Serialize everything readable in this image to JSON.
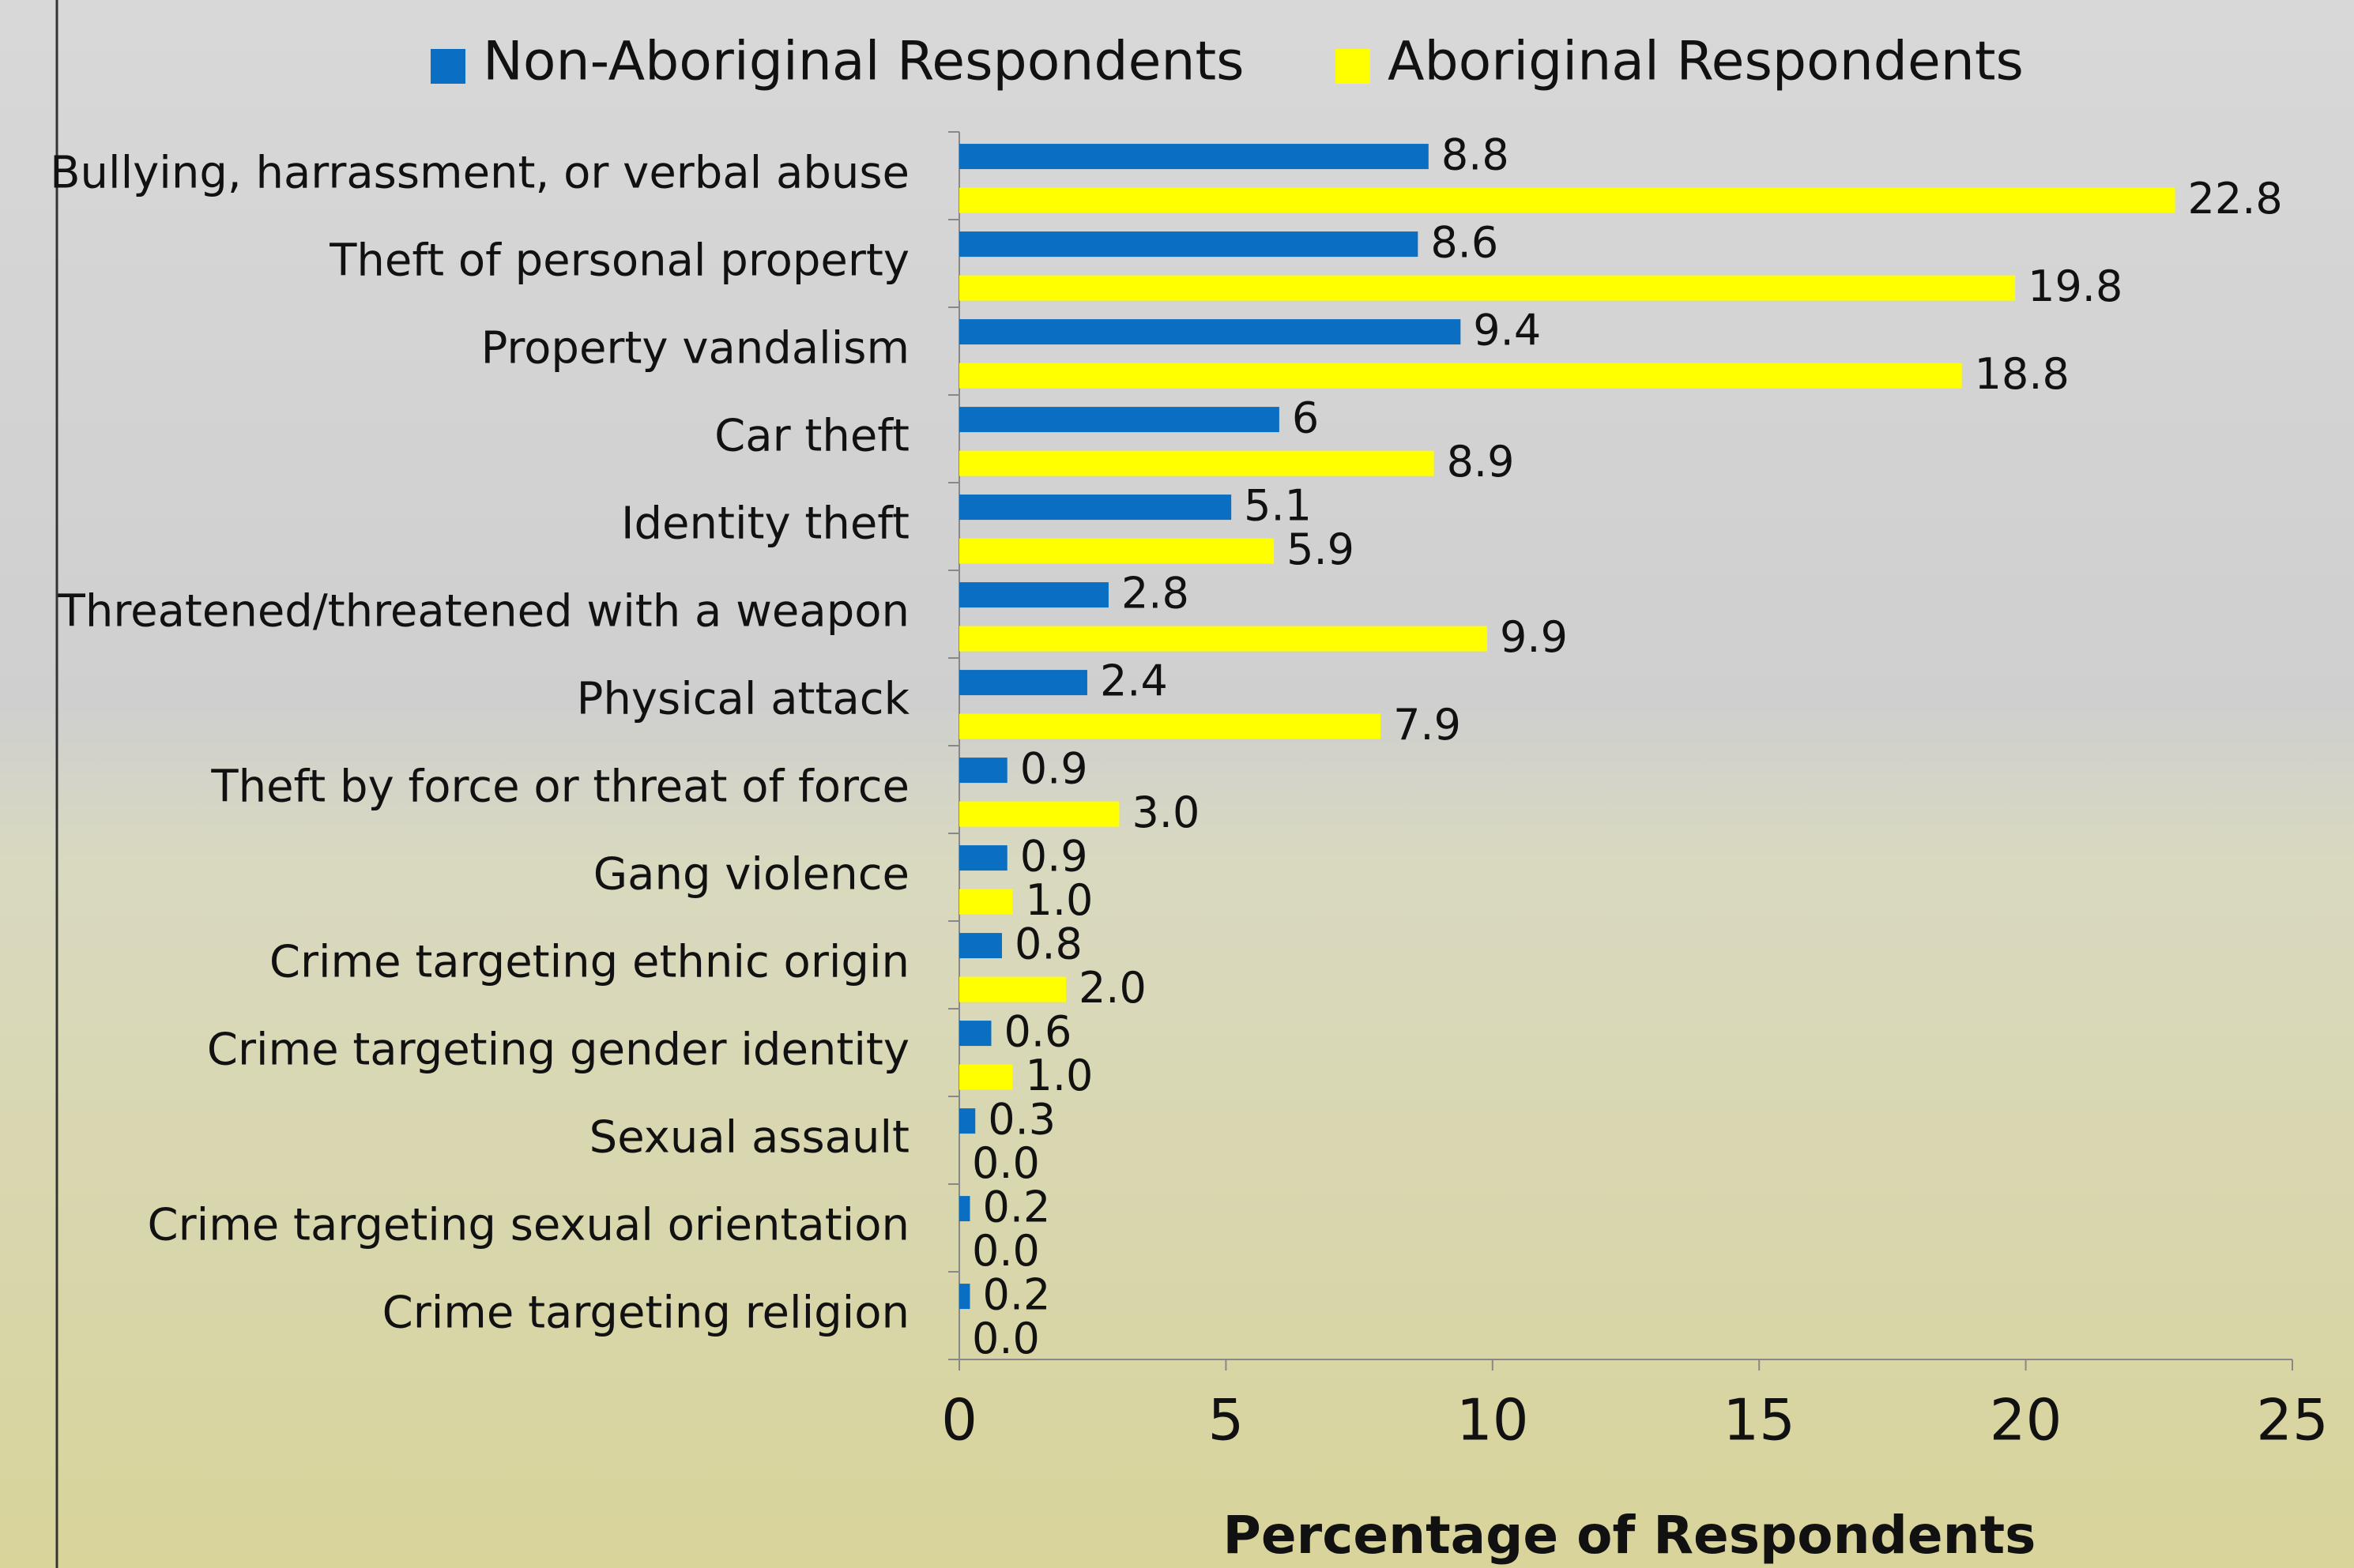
{
  "chart_data": {
    "type": "bar",
    "orientation": "horizontal",
    "xlabel": "Percentage of Respondents",
    "categories": [
      "Bullying, harrassment, or verbal abuse",
      "Theft of personal property",
      "Property vandalism",
      "Car theft",
      "Identity theft",
      "Threatened/threatened with a weapon",
      "Physical attack",
      "Theft by force or threat of force",
      "Gang violence",
      "Crime targeting ethnic origin",
      "Crime targeting gender identity",
      "Sexual assault",
      "Crime targeting sexual orientation",
      "Crime targeting religion"
    ],
    "series": [
      {
        "name": "Non-Aboriginal Respondents",
        "color": "#0a6fc2",
        "values": [
          8.8,
          8.6,
          9.4,
          6,
          5.1,
          2.8,
          2.4,
          0.9,
          0.9,
          0.8,
          0.6,
          0.3,
          0.2,
          0.2
        ]
      },
      {
        "name": "Aboriginal Respondents",
        "color": "#ffff00",
        "values": [
          22.8,
          19.8,
          18.8,
          8.9,
          5.9,
          9.9,
          7.9,
          3.0,
          1.0,
          2.0,
          1.0,
          0.0,
          0.0,
          0.0
        ],
        "value_labels": [
          "22.8",
          "19.8",
          "18.8",
          "8.9",
          "5.9",
          "9.9",
          "7.9",
          "3.0",
          "1.0",
          "2.0",
          "1.0",
          "0.0",
          "0.0",
          "0.0"
        ]
      }
    ],
    "xlim": [
      0,
      25
    ],
    "xticks": [
      0,
      5,
      10,
      15,
      20,
      25
    ]
  }
}
